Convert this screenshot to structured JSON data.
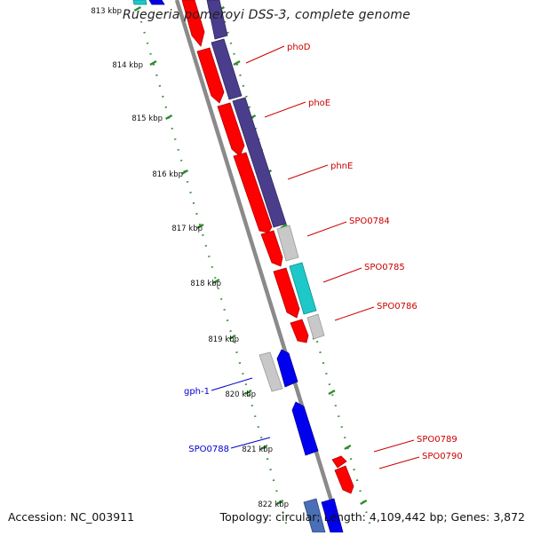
{
  "title": "Ruegeria pomeroyi DSS-3, complete genome",
  "footer": {
    "accession": "Accession: NC_003911",
    "summary": "Topology: circular; Length: 4,109,442 bp; Genes: 3,872"
  },
  "ticks": [
    "813 kbp",
    "814 kbp",
    "815 kbp",
    "816 kbp",
    "817 kbp",
    "818 kbp",
    "819 kbp",
    "820 kbp",
    "821 kbp",
    "822 kbp"
  ],
  "colors": {
    "forward_label": "#cc0000",
    "reverse_label": "#0000cc",
    "red_gene": "#ff0000",
    "blue_gene": "#0000ee",
    "purple_cds": "#4a3e8c",
    "teal": "#1ec8c8",
    "gray": "#c8c8c8",
    "backbone": "#888888",
    "dotted_guide": "#2e8b2e"
  },
  "genes_forward": [
    {
      "name": "phoD"
    },
    {
      "name": "phoE"
    },
    {
      "name": "phnE"
    },
    {
      "name": "SPO0784"
    },
    {
      "name": "SPO0785"
    },
    {
      "name": "SPO0786"
    },
    {
      "name": "SPO0789"
    },
    {
      "name": "SPO0790"
    }
  ],
  "genes_reverse": [
    {
      "name": "gph-1"
    },
    {
      "name": "SPO0788"
    }
  ]
}
